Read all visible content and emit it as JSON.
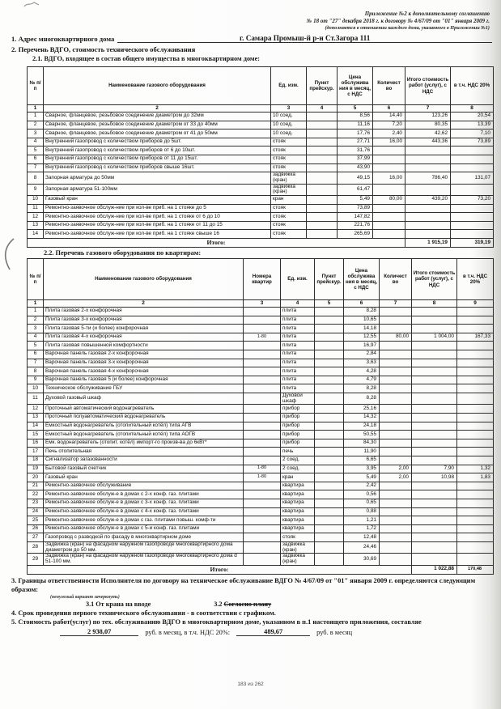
{
  "appendix": {
    "lines": [
      "Приложение №2 к дополнительному соглашению",
      "№ 18 от \"27\" декабря 2018 г. к договору № 4/67/09 от \"01\" января 2009 г.",
      "(дополняется в отношении каждого дома, указанного в Приложении №1)"
    ]
  },
  "address": {
    "label": "1. Адрес многоквартирного дома",
    "value": "г. Самара Промыш-й р-н Ст.Загора 111"
  },
  "sections": {
    "s2": "2. Перечень ВДГО, стоимость технического обслуживания",
    "s21": "2.1. ВДГО, входящее в состав общего имущества в многоквартирном доме:",
    "s22": "2.2. Перечень газового оборудования  по квартирам:",
    "s3": "3. Границы ответственности Исполнителя по договору на техническое обслуживание ВДГО № 4/67/09 от \"01\" января 2009 г. определяются следующим образом:",
    "s3_note": "(ненужный вариант зачеркнуть)",
    "s3_option1": "3.1  От крана на вводе",
    "s3_option2_num": "3.2",
    "s3_option2_text": "Согласно плану",
    "s4": "4. Срок проведения первого технического обслуживания - в соответствии с графиком.",
    "s5": "5. Стоимость работ(услуг) по тех. обслуживанию ВДГО в многоквартирном доме, указанном в п.1 настоящего приложения, составляе",
    "s5_amount1": "2 938,07",
    "s5_label1": "руб. в месяц, в т.ч. НДС 20%:",
    "s5_amount2": "489,67",
    "s5_label2": "руб. в месяц"
  },
  "table1": {
    "headers": [
      "№\nп/п",
      "Наименование газового оборудования",
      "Ед. изм.",
      "Пункт\nпрейскур.",
      "Цена обслужива ния в месяц, с НДС",
      "Количест во",
      "Итого стоимость работ (услуг), с НДС",
      "в т.ч. НДС 20%"
    ],
    "col_numbers": [
      "1",
      "2",
      "3",
      "4",
      "5",
      "6",
      "7",
      "8"
    ],
    "rows": [
      [
        "1",
        "Сварное, фланцевое, резьбовое соединение  диаметром до 32мм",
        "10 соед.",
        "",
        "8,56",
        "14,40",
        "123,26",
        "20,54"
      ],
      [
        "2",
        "Сварное, фланцевое, резьбовое соединение  диаметром от 33 до 40мм",
        "10 соед.",
        "",
        "11,16",
        "7,20",
        "80,35",
        "13,39"
      ],
      [
        "3",
        "Сварное, фланцевое, резьбовое соединение  диаметром от 41 до 50мм",
        "10 соед.",
        "",
        "17,76",
        "2,40",
        "42,62",
        "7,10"
      ],
      [
        "4",
        "Внутренний газопровод с количеством  приборов до 5шт.",
        "стояк",
        "",
        "27,71",
        "16,00",
        "443,36",
        "73,89"
      ],
      [
        "5",
        "Внутренний газопровод с количеством приборов от 6 до 10шт.",
        "стояк",
        "",
        "31,76",
        "",
        "",
        ""
      ],
      [
        "6",
        "Внутренний газопровод с количеством  приборов от 11 до 15шт.",
        "стояк",
        "",
        "37,99",
        "",
        "",
        ""
      ],
      [
        "7",
        "Внутренний газопровод с количеством приборов свыше 16шт.",
        "стояк",
        "",
        "43,90",
        "",
        "",
        ""
      ],
      [
        "8",
        "Запорная арматура до 50мм",
        "задвижка\n(кран)",
        "",
        "49,15",
        "16,00",
        "786,40",
        "131,07"
      ],
      [
        "9",
        "Запорная арматура 51-100мм",
        "задвижка\n(кран)",
        "",
        "61,47",
        "",
        "",
        ""
      ],
      [
        "10",
        "Газовый кран",
        "кран",
        "",
        "5,49",
        "80,00",
        "439,20",
        "73,20"
      ],
      [
        "11",
        "Ремонтно-заявочное обслуж-ние при кол-ве приб. на 1 стояке до 5",
        "стояк",
        "",
        "73,89",
        "",
        "",
        ""
      ],
      [
        "12",
        "Ремонтно-заявочное обслуж-ние при кол-ве приб. на 1 стояке от 6 до 10",
        "стояк",
        "",
        "147,82",
        "",
        "",
        ""
      ],
      [
        "13",
        "Ремонтно-заявочное обслуж-ние при кол-ве приб. на 1 стояке от 11 до 15",
        "стояк",
        "",
        "221,76",
        "",
        "",
        ""
      ],
      [
        "14",
        "Ремонтно-заявочное обслуж-ние при кол-ве приб. на 1 стояке свыше 16",
        "стояк",
        "",
        "265,69",
        "",
        "",
        ""
      ]
    ],
    "total_label": "Итого:",
    "total_values": [
      "1 915,19",
      "319,19"
    ]
  },
  "table2": {
    "headers": [
      "№\nп/п",
      "Наименование газового оборудования",
      "Номера квартир",
      "Ед. изм.",
      "Пункт\nпрейскур.",
      "Цена обслужива ния в месяц, с НДС",
      "Количест во",
      "Итого стоимость работ (услуг), с НДС",
      "в т.ч. НДС 20%"
    ],
    "col_numbers": [
      "1",
      "2",
      "3",
      "4",
      "5",
      "6",
      "7",
      "8",
      "9"
    ],
    "rows": [
      [
        "1",
        "Плита газовая 2-х конфорочная",
        "",
        "плита",
        "",
        "8,28",
        "",
        "",
        ""
      ],
      [
        "2",
        "Плита газовая 3-х конфорочная",
        "",
        "плита",
        "",
        "10,65",
        "",
        "",
        ""
      ],
      [
        "3",
        "Плита газовая 5-ти (и более) конфорочная",
        "",
        "плита",
        "",
        "14,18",
        "",
        "",
        ""
      ],
      [
        "4",
        "Плита газовая 4-х конфорочная",
        "1-80",
        "плита",
        "",
        "12,55",
        "80,00",
        "1 004,00",
        "167,33"
      ],
      [
        "5",
        "Плита газовая повышенной комфортности",
        "",
        "плита",
        "",
        "16,97",
        "",
        "",
        ""
      ],
      [
        "6",
        "Варочная панель газовая 2-х конфорочная",
        "",
        "плита",
        "",
        "2,84",
        "",
        "",
        ""
      ],
      [
        "7",
        "Варочная панель газовая 3-х конфорочная",
        "",
        "плита",
        "",
        "3,63",
        "",
        "",
        ""
      ],
      [
        "8",
        "Варочная панель газовая 4-х конфорочная",
        "",
        "плита",
        "",
        "4,28",
        "",
        "",
        ""
      ],
      [
        "9",
        "Варочная панель газовая 5 (и более) конфорочная",
        "",
        "плита",
        "",
        "4,79",
        "",
        "",
        ""
      ],
      [
        "10",
        "Техническое обслуживание ГБУ",
        "",
        "плита",
        "",
        "8,28",
        "",
        "",
        ""
      ],
      [
        "11",
        "Духовой газовый шкаф",
        "",
        "Духовой\nшкаф",
        "",
        "8,28",
        "",
        "",
        ""
      ],
      [
        "12",
        "Проточный автоматический водонагреватель",
        "",
        "прибор",
        "",
        "25,16",
        "",
        "",
        ""
      ],
      [
        "13",
        "Проточный полуавтоматический водонагреватель",
        "",
        "прибор",
        "",
        "14,32",
        "",
        "",
        ""
      ],
      [
        "14",
        "Емкостный водонагреватель (отопительный котёл) типа АГВ",
        "",
        "прибор",
        "",
        "24,18",
        "",
        "",
        ""
      ],
      [
        "15",
        "Емкостный водонагреватель (отопительный котёл) типа АОГВ",
        "",
        "прибор",
        "",
        "50,55",
        "",
        "",
        ""
      ],
      [
        "16",
        "Емк. водонагреватель (отопит. котёл) импорт-го произв-ва до 6кВт*",
        "",
        "прибор",
        "",
        "84,30",
        "",
        "",
        ""
      ],
      [
        "17",
        "Печь отопительная",
        "",
        "печь",
        "",
        "11,90",
        "",
        "",
        ""
      ],
      [
        "18",
        "Сигнализатор загазованности",
        "",
        "2 соед.",
        "",
        "6,65",
        "",
        "",
        ""
      ],
      [
        "19",
        "Бытовой газовый счетчик",
        "1-80",
        "2 соед.",
        "",
        "3,95",
        "2,00",
        "7,90",
        "1,32"
      ],
      [
        "20",
        "Газовый кран",
        "1-80",
        "кран",
        "",
        "5,49",
        "2,00",
        "10,98",
        "1,83"
      ],
      [
        "21",
        "Ремонтно-заявочное обслуживание",
        "",
        "квартира",
        "",
        "2,42",
        "",
        "",
        ""
      ],
      [
        "22",
        "Ремонтно-заявочное обслуж-е в домах с 2-х конф. газ. плитами",
        "",
        "квартира",
        "",
        "0,56",
        "",
        "",
        ""
      ],
      [
        "23",
        "Ремонтно-заявочное обслуж-е в домах с 3-х конф. газ. плитами",
        "",
        "квартира",
        "",
        "0,65",
        "",
        "",
        ""
      ],
      [
        "24",
        "Ремонтно-заявочное обслуж-е в домах с 4-х конф. газ. плитами",
        "",
        "квартира",
        "",
        "0,88",
        "",
        "",
        ""
      ],
      [
        "25",
        "Ремонтно-заявочное обслуж-е в домах с газ. плитами повыш. комф-ти",
        "",
        "квартира",
        "",
        "1,21",
        "",
        "",
        ""
      ],
      [
        "26",
        "Ремонтно-заявочное обслуж-е в домах с 5-и конф. газ. плитами",
        "",
        "квартира",
        "",
        "1,72",
        "",
        "",
        ""
      ],
      [
        "27",
        "Газопровод с разводкой по фасаду в многоквартирном доме",
        "",
        "стояк",
        "",
        "12,48",
        "",
        "",
        ""
      ],
      [
        "28",
        "Задвижка (кран) на фасадном наружном газопроводе многоквартирного дома диаметром до 50 мм.",
        "",
        "задвижка\n(кран)",
        "",
        "24,46",
        "",
        "",
        ""
      ],
      [
        "29",
        "Задвижка (кран) на фасадном наружном газопроводе многоквартирного дома d 51-100 мм.",
        "",
        "задвижка\n(кран)",
        "",
        "30,69",
        "",
        "",
        ""
      ]
    ],
    "total_label": "Итого:",
    "total_values": [
      "1 022,88",
      "170,48"
    ]
  },
  "footer": {
    "page_number": "183 из 262"
  }
}
